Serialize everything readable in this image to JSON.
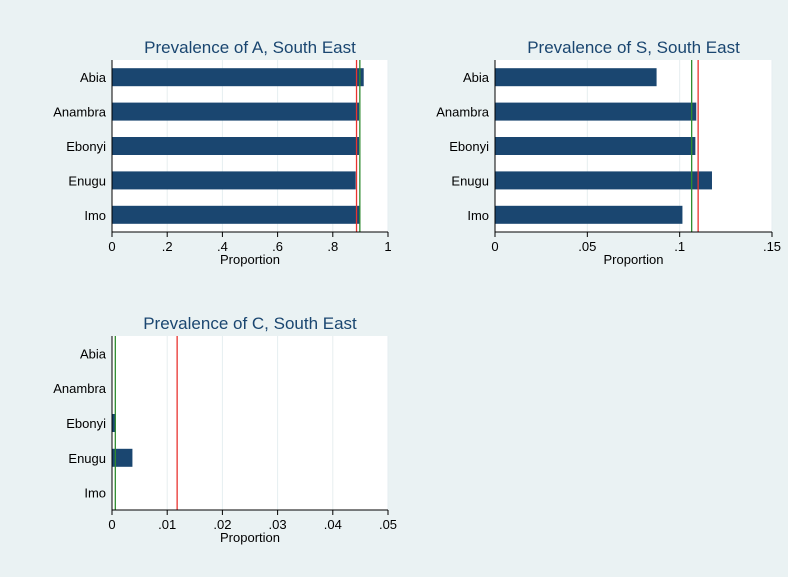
{
  "colors": {
    "background": "#eaf2f3",
    "plot_background": "#ffffff",
    "bar": "#1a4670",
    "title": "#1a4670",
    "red_line": "#e8332f",
    "green_line": "#2e8b2e",
    "grid": "#e6eef0",
    "axis": "#000000"
  },
  "chart_data": [
    {
      "type": "bar",
      "orientation": "horizontal",
      "title": "Prevalence of A, South East",
      "xlabel": "Proportion",
      "categories": [
        "Abia",
        "Anambra",
        "Ebonyi",
        "Enugu",
        "Imo"
      ],
      "values": [
        0.912,
        0.895,
        0.895,
        0.883,
        0.9
      ],
      "xlim": [
        0,
        1
      ],
      "xticks": [
        0,
        0.2,
        0.4,
        0.6,
        0.8,
        1
      ],
      "xtick_labels": [
        "0",
        ".2",
        ".4",
        ".6",
        ".8",
        "1"
      ],
      "reference_lines": [
        {
          "color": "red",
          "value": 0.886
        },
        {
          "color": "green",
          "value": 0.898
        }
      ],
      "grid": true
    },
    {
      "type": "bar",
      "orientation": "horizontal",
      "title": "Prevalence of S, South East",
      "xlabel": "Proportion",
      "categories": [
        "Abia",
        "Anambra",
        "Ebonyi",
        "Enugu",
        "Imo"
      ],
      "values": [
        0.0875,
        0.109,
        0.1085,
        0.1175,
        0.1015
      ],
      "xlim": [
        0,
        0.15
      ],
      "xticks": [
        0,
        0.05,
        0.1,
        0.15
      ],
      "xtick_labels": [
        "0",
        ".05",
        ".1",
        ".15"
      ],
      "reference_lines": [
        {
          "color": "green",
          "value": 0.1065
        },
        {
          "color": "red",
          "value": 0.11
        }
      ],
      "grid": true
    },
    {
      "type": "bar",
      "orientation": "horizontal",
      "title": "Prevalence of C, South East",
      "xlabel": "Proportion",
      "categories": [
        "Abia",
        "Anambra",
        "Ebonyi",
        "Enugu",
        "Imo"
      ],
      "values": [
        0,
        0,
        0.0007,
        0.0037,
        0
      ],
      "xlim": [
        0,
        0.05
      ],
      "xticks": [
        0,
        0.01,
        0.02,
        0.03,
        0.04,
        0.05
      ],
      "xtick_labels": [
        "0",
        ".01",
        ".02",
        ".03",
        ".04",
        ".05"
      ],
      "reference_lines": [
        {
          "color": "green",
          "value": 0.0006
        },
        {
          "color": "red",
          "value": 0.0118
        }
      ],
      "grid": true
    }
  ]
}
